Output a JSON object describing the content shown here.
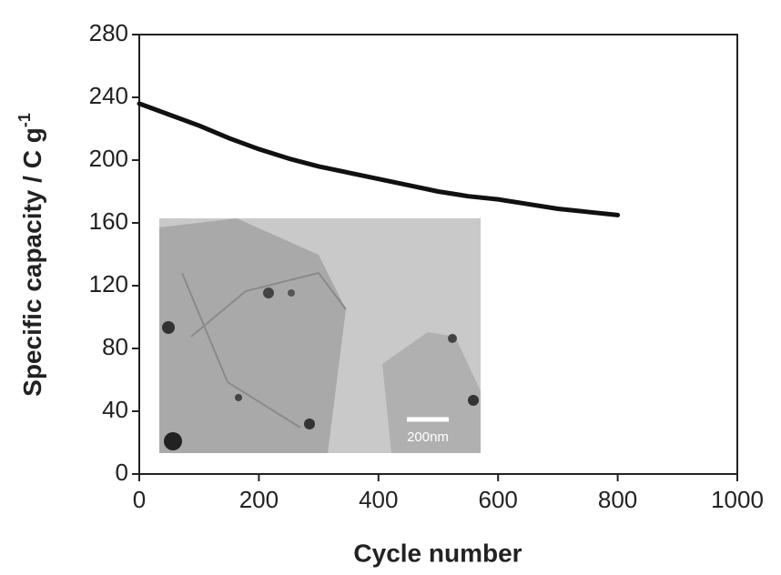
{
  "chart_data": {
    "type": "line",
    "xlabel": "Cycle number",
    "ylabel": "Specific capacity / C g",
    "ylabel_superscript": "-1",
    "x": [
      0,
      50,
      100,
      150,
      200,
      250,
      300,
      350,
      400,
      450,
      500,
      550,
      600,
      650,
      700,
      750,
      800
    ],
    "series": [
      {
        "color": "#111111",
        "values": [
          236,
          229,
          222,
          214,
          207,
          201,
          196,
          192,
          188,
          184,
          180,
          177,
          175,
          172,
          169,
          167,
          165
        ]
      }
    ],
    "xlim": [
      0,
      1000
    ],
    "xticks": [
      0,
      200,
      400,
      600,
      800,
      1000
    ],
    "ylim": [
      0,
      280
    ],
    "yticks": [
      0,
      40,
      80,
      120,
      160,
      200,
      240,
      280
    ],
    "inset_scale_label": "200nm"
  }
}
